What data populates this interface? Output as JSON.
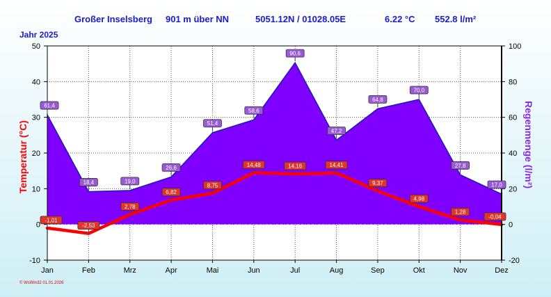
{
  "header": {
    "station": "Großer Inselsberg",
    "elevation": "901 m über NN",
    "coords": "5051.12N / 01028.05E",
    "mean_temp": "6.22 °C",
    "total_rain": "552.8 l/m²",
    "year_label": "Jahr 2025"
  },
  "footer": {
    "credit": "© WsWin32  01.01.2026"
  },
  "colors": {
    "rain_fill": "#7f00ff",
    "rain_line": "#1a1ab4",
    "temp_line": "#ff0000",
    "header_text": "#1a1ad0",
    "axis_left": "#ff0000",
    "axis_right": "#8a2be2"
  },
  "chart_data": {
    "type": "line",
    "categories": [
      "Jan",
      "Feb",
      "Mrz",
      "Apr",
      "Mai",
      "Jun",
      "Jul",
      "Aug",
      "Sep",
      "Okt",
      "Nov",
      "Dez"
    ],
    "ylabel": "Temperatur (°C)",
    "y2label": "Regenmenge (l/m²)",
    "ylim": [
      -10,
      50
    ],
    "y2lim": [
      -20,
      100
    ],
    "yticks": [
      -10,
      0,
      10,
      20,
      30,
      40,
      50
    ],
    "y2ticks": [
      -20,
      0,
      20,
      40,
      60,
      80,
      100
    ],
    "grid": true,
    "series": [
      {
        "axis": "right",
        "kind": "area",
        "values": [
          61.4,
          18.4,
          19.0,
          26.6,
          51.4,
          58.6,
          90.6,
          47.2,
          64.8,
          70.0,
          27.8,
          17.0
        ],
        "labels": [
          "61,4",
          "18,4",
          "19,0",
          "26,6",
          "51,4",
          "58,6",
          "90,6",
          "47,2",
          "64,8",
          "70,0",
          "27,8",
          "17,0"
        ]
      },
      {
        "axis": "left",
        "kind": "line",
        "values": [
          -1.01,
          -2.53,
          2.78,
          6.82,
          8.75,
          14.48,
          14.16,
          14.41,
          9.37,
          4.98,
          1.28,
          -0.04
        ],
        "labels": [
          "-1,01",
          "-2,53",
          "2,78",
          "6,82",
          "8,75",
          "14,48",
          "14,16",
          "14,41",
          "9,37",
          "4,98",
          "1,28",
          "-0,04"
        ]
      }
    ]
  }
}
